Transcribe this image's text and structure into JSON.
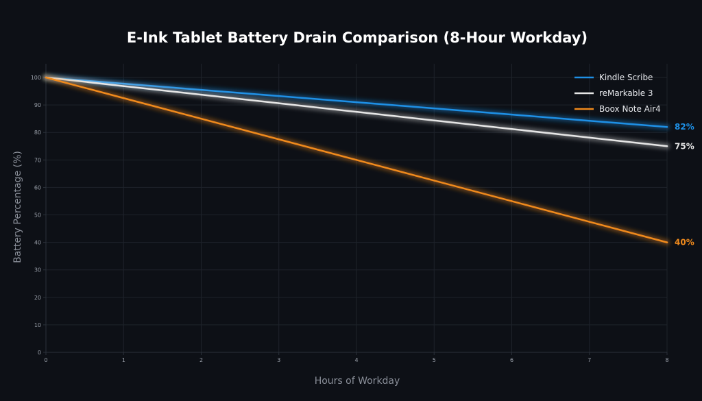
{
  "chart_data": {
    "type": "line",
    "title": "E-Ink Tablet Battery Drain Comparison (8-Hour Workday)",
    "xlabel": "Hours of Workday",
    "ylabel": "Battery Percentage (%)",
    "xlim": [
      0,
      8
    ],
    "ylim": [
      0,
      105
    ],
    "x_ticks": [
      "0",
      "1",
      "2",
      "3",
      "4",
      "5",
      "6",
      "7",
      "8"
    ],
    "y_ticks": [
      "0",
      "10",
      "20",
      "30",
      "40",
      "50",
      "60",
      "70",
      "80",
      "90",
      "100"
    ],
    "grid": true,
    "legend_position": "top-right",
    "x": [
      0,
      1,
      2,
      3,
      4,
      5,
      6,
      7,
      8
    ],
    "series": [
      {
        "name": "Kindle Scribe",
        "color": "#1e90e6",
        "values": [
          100,
          97.75,
          95.5,
          93.25,
          91,
          88.75,
          86.5,
          84.25,
          82
        ],
        "end_label": "82%"
      },
      {
        "name": "reMarkable 3",
        "color": "#e6e6e6",
        "values": [
          100,
          96.875,
          93.75,
          90.625,
          87.5,
          84.375,
          81.25,
          78.125,
          75
        ],
        "end_label": "75%"
      },
      {
        "name": "Boox Note Air4",
        "color": "#f08a1c",
        "values": [
          100,
          92.5,
          85,
          77.5,
          70,
          62.5,
          55,
          47.5,
          40
        ],
        "end_label": "40%"
      }
    ]
  }
}
